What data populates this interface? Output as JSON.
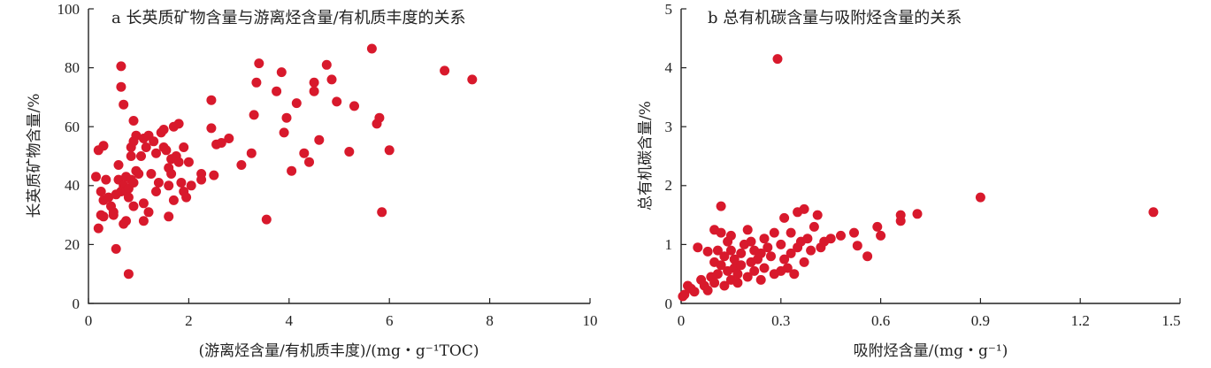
{
  "chart_data": [
    {
      "type": "scatter",
      "title": "a 长英质矿物含量与游离烃含量/有机质丰度的关系",
      "xlabel": "(游离烃含量/有机质丰度)/(mg・g⁻¹TOC)",
      "ylabel": "长英质矿物含量/%",
      "xlim": [
        0,
        10
      ],
      "ylim": [
        0,
        100
      ],
      "xticks": [
        "0",
        "2",
        "4",
        "6",
        "8",
        "10"
      ],
      "yticks": [
        "0",
        "20",
        "40",
        "60",
        "80",
        "100"
      ],
      "grid": false,
      "series": [
        {
          "color": "#d8192c",
          "points": [
            [
              0.15,
              43
            ],
            [
              0.2,
              52
            ],
            [
              0.3,
              53.5
            ],
            [
              0.25,
              38
            ],
            [
              0.3,
              35
            ],
            [
              0.35,
              42
            ],
            [
              0.2,
              25.5
            ],
            [
              0.25,
              30
            ],
            [
              0.3,
              29.5
            ],
            [
              0.4,
              36
            ],
            [
              0.45,
              33
            ],
            [
              0.5,
              31
            ],
            [
              0.5,
              30
            ],
            [
              0.55,
              37
            ],
            [
              0.6,
              47
            ],
            [
              0.6,
              42
            ],
            [
              0.65,
              80.5
            ],
            [
              0.65,
              73.5
            ],
            [
              0.7,
              67.5
            ],
            [
              0.65,
              38
            ],
            [
              0.7,
              40
            ],
            [
              0.75,
              43
            ],
            [
              0.75,
              38
            ],
            [
              0.8,
              39
            ],
            [
              0.8,
              36
            ],
            [
              0.85,
              42
            ],
            [
              0.85,
              50
            ],
            [
              0.85,
              53
            ],
            [
              0.9,
              62
            ],
            [
              0.9,
              55
            ],
            [
              0.95,
              57
            ],
            [
              0.95,
              45
            ],
            [
              0.9,
              33
            ],
            [
              0.75,
              28
            ],
            [
              0.7,
              27
            ],
            [
              0.55,
              18.5
            ],
            [
              0.8,
              10
            ],
            [
              0.9,
              41
            ],
            [
              1.0,
              44
            ],
            [
              1.05,
              50
            ],
            [
              1.1,
              56
            ],
            [
              1.15,
              53
            ],
            [
              1.2,
              57
            ],
            [
              1.25,
              44
            ],
            [
              1.3,
              55
            ],
            [
              1.35,
              51
            ],
            [
              1.4,
              41
            ],
            [
              1.45,
              58
            ],
            [
              1.5,
              59
            ],
            [
              1.5,
              53
            ],
            [
              1.55,
              52
            ],
            [
              1.6,
              46
            ],
            [
              1.6,
              40
            ],
            [
              1.65,
              49
            ],
            [
              1.65,
              44
            ],
            [
              1.7,
              60
            ],
            [
              1.75,
              50
            ],
            [
              1.8,
              48
            ],
            [
              1.8,
              61
            ],
            [
              1.85,
              41
            ],
            [
              1.9,
              53
            ],
            [
              1.9,
              38
            ],
            [
              2.0,
              48
            ],
            [
              1.95,
              36
            ],
            [
              1.6,
              29.5
            ],
            [
              1.7,
              35
            ],
            [
              1.1,
              34
            ],
            [
              1.1,
              28
            ],
            [
              1.2,
              31
            ],
            [
              1.35,
              38
            ],
            [
              2.05,
              40
            ],
            [
              2.25,
              44
            ],
            [
              2.25,
              42
            ],
            [
              2.45,
              59.5
            ],
            [
              2.45,
              69
            ],
            [
              2.5,
              43.5
            ],
            [
              2.55,
              54
            ],
            [
              2.65,
              54.5
            ],
            [
              2.8,
              56
            ],
            [
              3.05,
              47
            ],
            [
              3.25,
              51
            ],
            [
              3.3,
              64
            ],
            [
              3.35,
              75
            ],
            [
              3.4,
              81.5
            ],
            [
              3.55,
              28.5
            ],
            [
              3.75,
              72
            ],
            [
              3.85,
              78.5
            ],
            [
              3.9,
              58
            ],
            [
              3.95,
              63
            ],
            [
              4.05,
              45
            ],
            [
              4.15,
              68
            ],
            [
              4.3,
              51
            ],
            [
              4.4,
              48
            ],
            [
              4.5,
              75
            ],
            [
              4.5,
              72
            ],
            [
              4.6,
              55.5
            ],
            [
              4.75,
              81
            ],
            [
              4.85,
              76
            ],
            [
              4.95,
              68.5
            ],
            [
              5.2,
              51.5
            ],
            [
              5.3,
              67
            ],
            [
              5.65,
              86.5
            ],
            [
              5.75,
              61
            ],
            [
              5.8,
              63
            ],
            [
              5.85,
              31
            ],
            [
              6.0,
              52
            ],
            [
              7.1,
              79
            ],
            [
              7.65,
              76
            ]
          ]
        }
      ]
    },
    {
      "type": "scatter",
      "title": "b 总有机碳含量与吸附烃含量的关系",
      "xlabel": "吸附烃含量/(mg・g⁻¹)",
      "ylabel": "总有机碳含量/%",
      "xlim": [
        0,
        1.5
      ],
      "ylim": [
        0,
        5
      ],
      "xticks": [
        "0",
        "0.3",
        "0.6",
        "0.9",
        "1.2",
        "1.5"
      ],
      "yticks": [
        "0",
        "1",
        "2",
        "3",
        "4",
        "5"
      ],
      "grid": false,
      "series": [
        {
          "color": "#d8192c",
          "points": [
            [
              0.005,
              0.12
            ],
            [
              0.01,
              0.15
            ],
            [
              0.02,
              0.3
            ],
            [
              0.03,
              0.25
            ],
            [
              0.04,
              0.2
            ],
            [
              0.05,
              0.95
            ],
            [
              0.06,
              0.4
            ],
            [
              0.07,
              0.3
            ],
            [
              0.08,
              0.88
            ],
            [
              0.08,
              0.22
            ],
            [
              0.09,
              0.45
            ],
            [
              0.1,
              0.35
            ],
            [
              0.1,
              0.7
            ],
            [
              0.1,
              1.25
            ],
            [
              0.11,
              0.5
            ],
            [
              0.11,
              0.9
            ],
            [
              0.12,
              0.65
            ],
            [
              0.12,
              1.65
            ],
            [
              0.12,
              1.2
            ],
            [
              0.13,
              0.3
            ],
            [
              0.13,
              0.8
            ],
            [
              0.14,
              0.55
            ],
            [
              0.14,
              1.05
            ],
            [
              0.15,
              0.4
            ],
            [
              0.15,
              0.9
            ],
            [
              0.15,
              1.15
            ],
            [
              0.16,
              0.6
            ],
            [
              0.16,
              0.75
            ],
            [
              0.17,
              0.35
            ],
            [
              0.17,
              0.5
            ],
            [
              0.18,
              0.85
            ],
            [
              0.18,
              0.65
            ],
            [
              0.19,
              1.0
            ],
            [
              0.2,
              0.45
            ],
            [
              0.2,
              1.25
            ],
            [
              0.21,
              0.7
            ],
            [
              0.21,
              1.05
            ],
            [
              0.22,
              0.55
            ],
            [
              0.22,
              0.9
            ],
            [
              0.23,
              0.75
            ],
            [
              0.24,
              0.4
            ],
            [
              0.24,
              0.85
            ],
            [
              0.25,
              0.6
            ],
            [
              0.25,
              1.1
            ],
            [
              0.26,
              0.95
            ],
            [
              0.27,
              0.8
            ],
            [
              0.28,
              0.5
            ],
            [
              0.28,
              1.2
            ],
            [
              0.29,
              4.15
            ],
            [
              0.3,
              0.55
            ],
            [
              0.3,
              1.0
            ],
            [
              0.31,
              1.45
            ],
            [
              0.31,
              0.75
            ],
            [
              0.32,
              0.6
            ],
            [
              0.33,
              0.85
            ],
            [
              0.33,
              1.2
            ],
            [
              0.34,
              0.5
            ],
            [
              0.35,
              1.55
            ],
            [
              0.35,
              0.95
            ],
            [
              0.36,
              1.05
            ],
            [
              0.37,
              1.6
            ],
            [
              0.37,
              0.7
            ],
            [
              0.38,
              1.1
            ],
            [
              0.39,
              0.9
            ],
            [
              0.4,
              1.3
            ],
            [
              0.41,
              1.5
            ],
            [
              0.42,
              0.95
            ],
            [
              0.43,
              1.05
            ],
            [
              0.45,
              1.1
            ],
            [
              0.48,
              1.15
            ],
            [
              0.52,
              1.2
            ],
            [
              0.53,
              0.98
            ],
            [
              0.56,
              0.8
            ],
            [
              0.59,
              1.3
            ],
            [
              0.6,
              1.15
            ],
            [
              0.66,
              1.5
            ],
            [
              0.66,
              1.4
            ],
            [
              0.71,
              1.52
            ],
            [
              0.9,
              1.8
            ],
            [
              1.42,
              1.55
            ]
          ]
        }
      ]
    }
  ]
}
